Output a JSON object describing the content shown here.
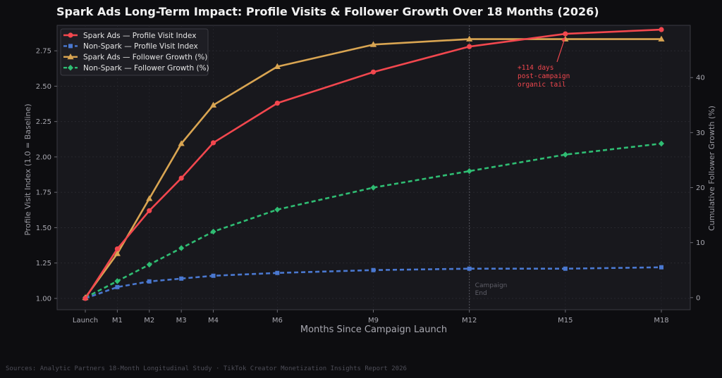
{
  "chart_data": {
    "type": "line",
    "title": "Spark Ads Long-Term Impact: Profile Visits & Follower Growth Over 18 Months (2026)",
    "xlabel": "Months Since Campaign Launch",
    "ylabel_left": "Profile Visit Index (1.0 = Baseline)",
    "ylabel_right": "Cumulative Follower Growth (%)",
    "x": [
      0,
      1,
      2,
      3,
      4,
      6,
      9,
      12,
      15,
      18
    ],
    "x_tick_labels": [
      "Launch",
      "M1",
      "M2",
      "M3",
      "M4",
      "M6",
      "M9",
      "M12",
      "M15",
      "M18"
    ],
    "ylim_left": [
      0.92,
      2.93
    ],
    "yticks_left": [
      "1.00",
      "1.25",
      "1.50",
      "1.75",
      "2.00",
      "2.25",
      "2.50",
      "2.75"
    ],
    "ylim_right": [
      -2.2,
      49.5
    ],
    "yticks_right": [
      "0",
      "10",
      "20",
      "30",
      "40"
    ],
    "grid": true,
    "legend_position": "top-left",
    "series": [
      {
        "name": "Spark Ads — Profile Visit Index",
        "axis": "left",
        "color": "#f2474e",
        "style": "solid",
        "marker": "circle",
        "values": [
          1.0,
          1.35,
          1.62,
          1.85,
          2.1,
          2.38,
          2.6,
          2.78,
          2.87,
          2.9
        ]
      },
      {
        "name": "Non-Spark — Profile Visit Index",
        "axis": "left",
        "color": "#4a78d0",
        "style": "dashed",
        "marker": "square",
        "values": [
          1.0,
          1.08,
          1.12,
          1.14,
          1.16,
          1.18,
          1.2,
          1.21,
          1.21,
          1.22
        ]
      },
      {
        "name": "Spark Ads — Follower Growth (%)",
        "axis": "right",
        "color": "#d9a552",
        "style": "solid",
        "marker": "triangle",
        "values": [
          0,
          8,
          18,
          28,
          35,
          42,
          46,
          47,
          47,
          47
        ]
      },
      {
        "name": "Non-Spark — Follower Growth (%)",
        "axis": "right",
        "color": "#2fbd73",
        "style": "dashed",
        "marker": "diamond",
        "values": [
          0,
          3,
          6,
          9,
          12,
          16,
          20,
          23,
          26,
          28
        ]
      }
    ],
    "vline": {
      "x": 12,
      "label_line1": "Campaign",
      "label_line2": "End"
    },
    "annotation": {
      "lines": [
        "+114 days",
        "post-campaign",
        "organic tail"
      ],
      "color": "#f2474e",
      "points_to_x": 15
    }
  },
  "footer": {
    "source": "Sources: Analytic Partners 18-Month Longitudinal Study · TikTok Creator Monetization Insights Report 2026"
  }
}
